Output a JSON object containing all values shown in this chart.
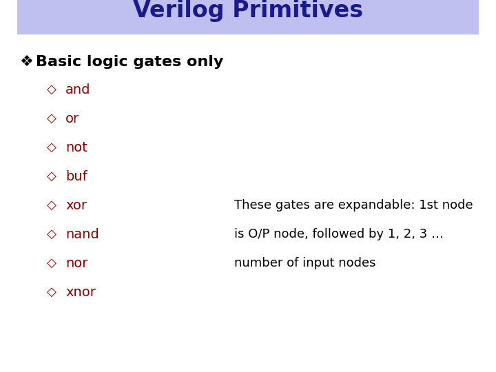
{
  "title": "Verilog Primitives",
  "title_color": "#1a1a8c",
  "title_bg_color": "#c0c0f0",
  "title_fontsize": 24,
  "bg_color": "#ffffff",
  "main_bullet": "Basic logic gates only",
  "main_bullet_color": "#000000",
  "main_bullet_fontsize": 16,
  "sub_items": [
    "and",
    "or",
    "not",
    "buf",
    "xor",
    "nand",
    "nor",
    "xnor"
  ],
  "sub_item_color": "#8b0000",
  "sub_item_fontsize": 14,
  "side_notes": [
    {
      "text": "These gates are expandable: 1st node",
      "item_index": 4
    },
    {
      "text": "is O/P node, followed by 1, 2, 3 …",
      "item_index": 5
    },
    {
      "text": "number of input nodes",
      "item_index": 6
    }
  ],
  "side_note_color": "#000000",
  "side_note_fontsize": 13
}
